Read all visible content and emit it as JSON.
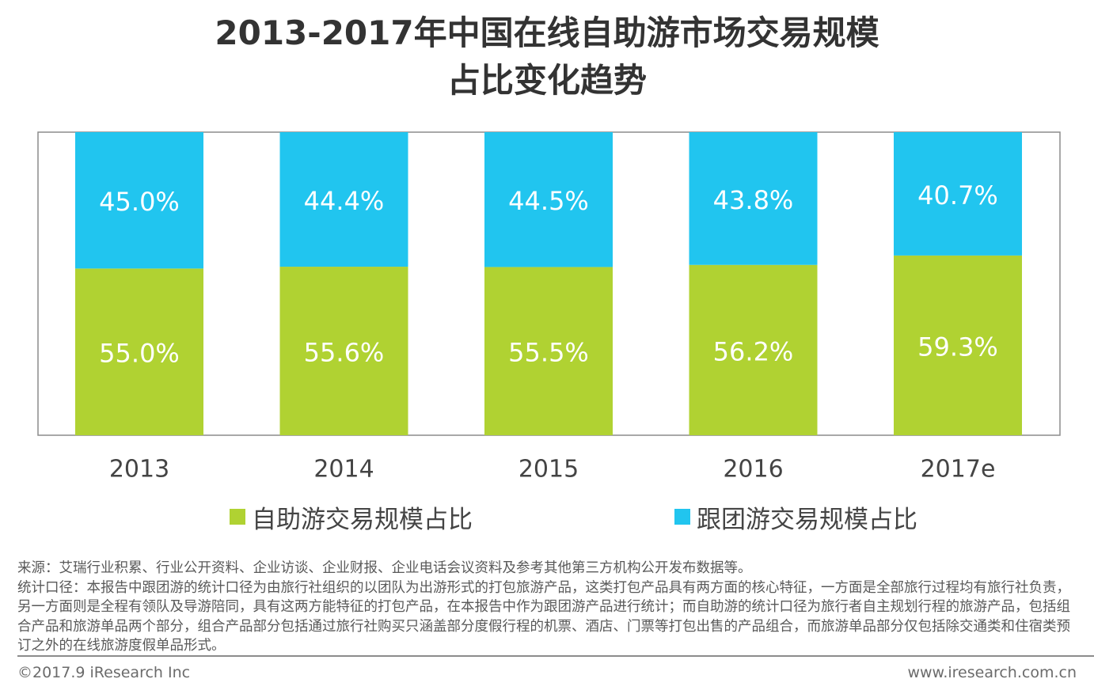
{
  "title_line1": "2013-2017年中国在线自助游市场交易规模",
  "title_line2": "占比变化趋势",
  "chart_data": {
    "type": "bar",
    "stacked": true,
    "title": "2013-2017年中国在线自助游市场交易规模占比变化趋势",
    "categories": [
      "2013",
      "2014",
      "2015",
      "2016",
      "2017e"
    ],
    "series": [
      {
        "name": "自助游交易规模占比",
        "values": [
          55.0,
          55.6,
          55.5,
          56.2,
          59.3
        ],
        "labels": [
          "55.0%",
          "55.6%",
          "55.5%",
          "56.2%",
          "59.3%"
        ],
        "color": "#b0d232"
      },
      {
        "name": "跟团游交易规模占比",
        "values": [
          45.0,
          44.4,
          44.5,
          43.8,
          40.7
        ],
        "labels": [
          "45.0%",
          "44.4%",
          "44.5%",
          "43.8%",
          "40.7%"
        ],
        "color": "#21c5ef"
      }
    ],
    "ylim": [
      0,
      100
    ],
    "xlabel": "",
    "ylabel": "",
    "legend_position": "bottom"
  },
  "legend": {
    "self_guided": "自助游交易规模占比",
    "group_tour": "跟团游交易规模占比"
  },
  "notes": {
    "source": "来源：艾瑞行业积累、行业公开资料、企业访谈、企业财报、企业电话会议资料及参考其他第三方机构公开发布数据等。",
    "definition": "统计口径：本报告中跟团游的统计口径为由旅行社组织的以团队为出游形式的打包旅游产品，这类打包产品具有两方面的核心特征，一方面是全部旅行过程均有旅行社负责，另一方面则是全程有领队及导游陪同，具有这两方能特征的打包产品，在本报告中作为跟团游产品进行统计；而自助游的统计口径为旅行者自主规划行程的旅游产品，包括组合产品和旅游单品两个部分，组合产品部分包括通过旅行社购买只涵盖部分度假行程的机票、酒店、门票等打包出售的产品组合，而旅游单品部分仅包括除交通类和住宿类预订之外的在线旅游度假单品形式。"
  },
  "footer": {
    "copyright": "©2017.9 iResearch Inc",
    "url": "www.iresearch.com.cn"
  }
}
